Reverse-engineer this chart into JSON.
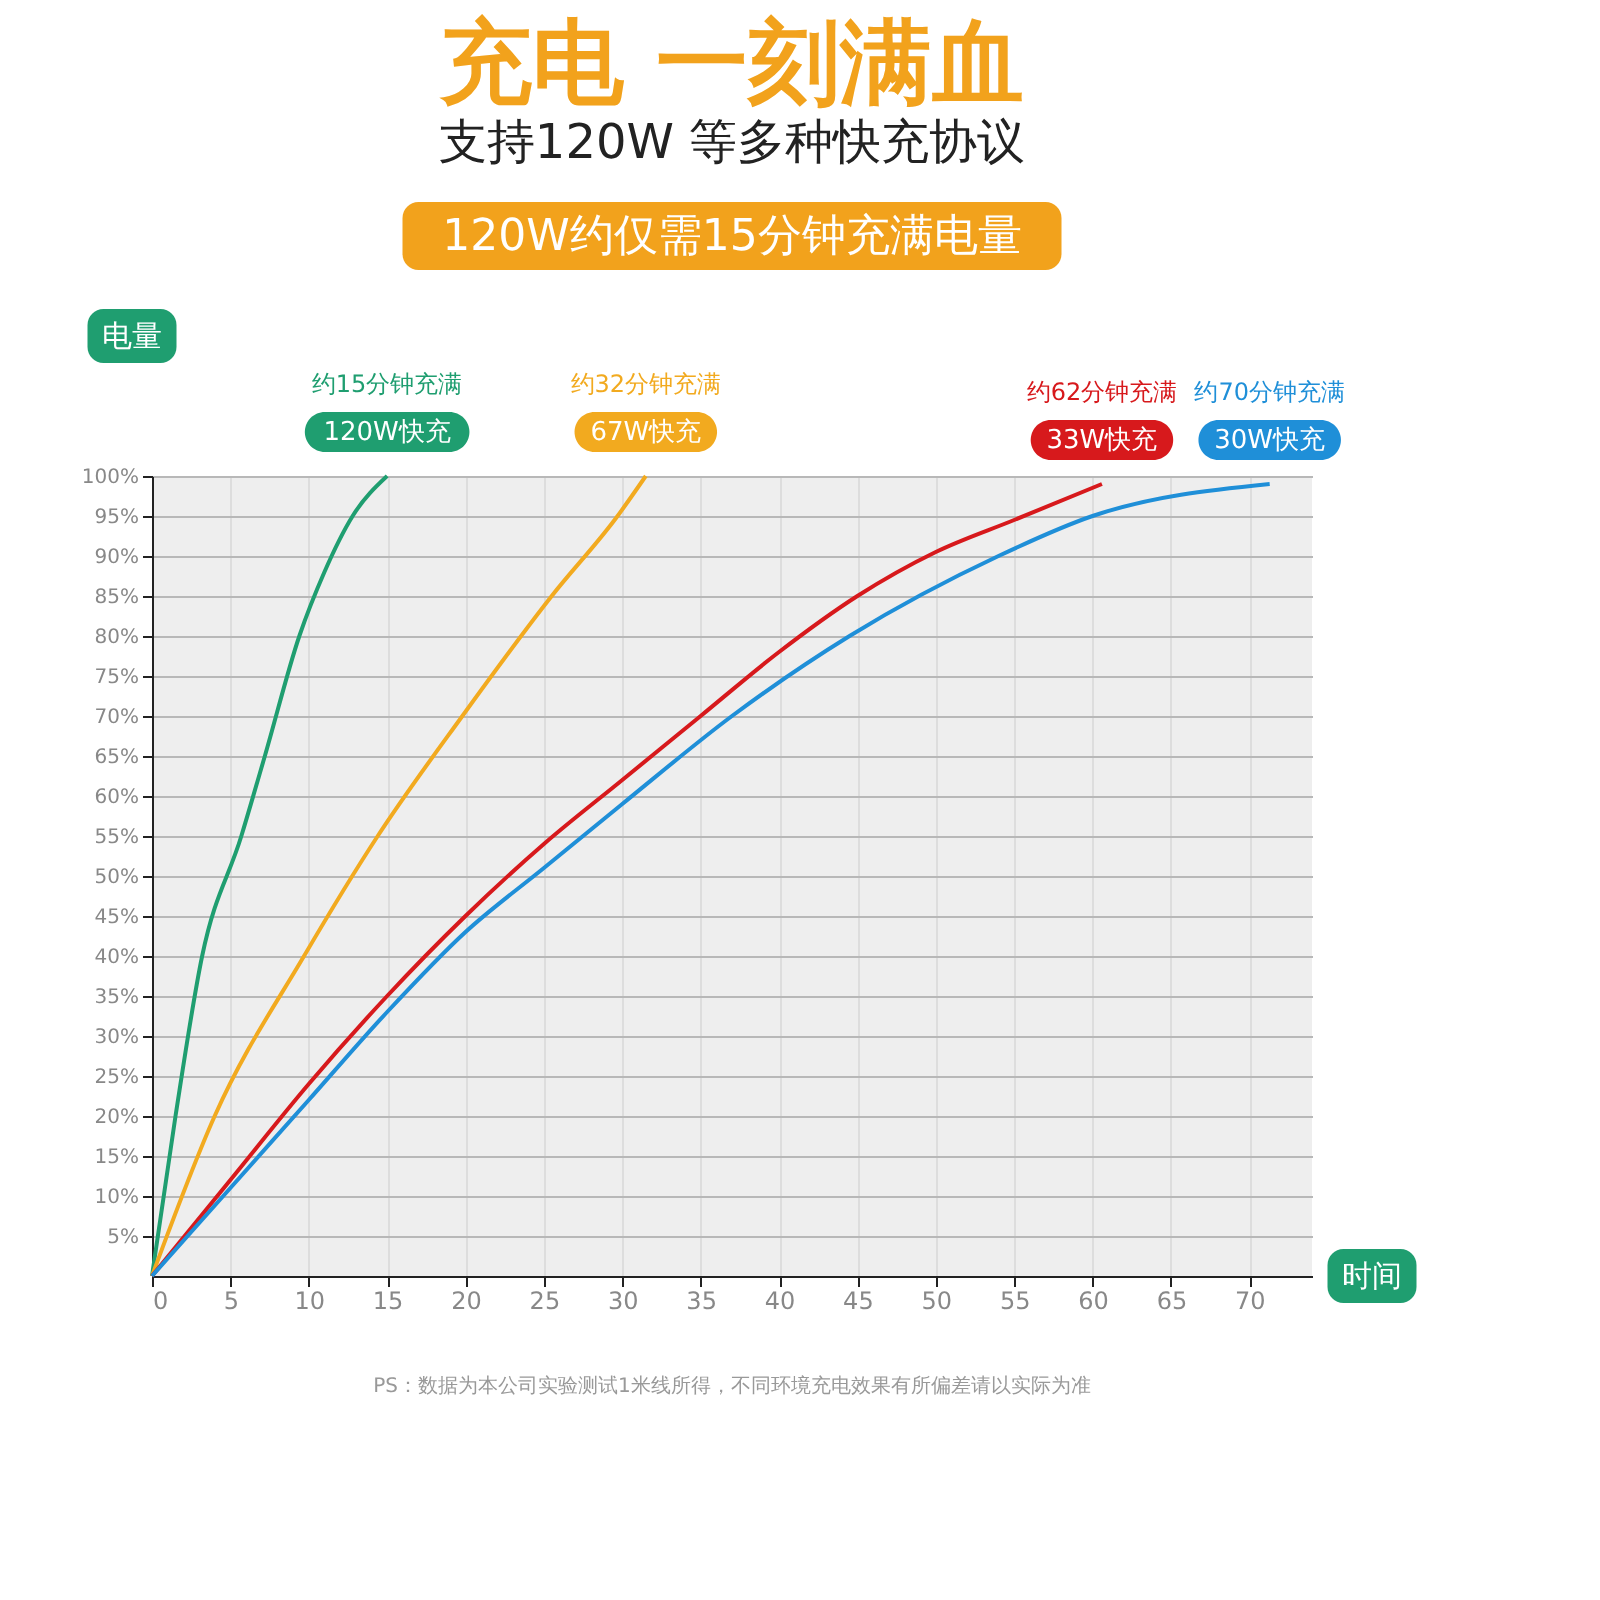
{
  "chart_data": {
    "type": "line",
    "title": "充电 一刻满血",
    "subtitle": "支持120W 等多种快充协议",
    "xlabel": "时间",
    "ylabel": "电量",
    "xlim": [
      0,
      74
    ],
    "ylim": [
      0,
      100
    ],
    "xticks": [
      0,
      5,
      10,
      15,
      20,
      25,
      30,
      35,
      40,
      45,
      50,
      55,
      60,
      65,
      70
    ],
    "yticks": [
      {
        "value": 5,
        "label": "5%"
      },
      {
        "value": 10,
        "label": "10%"
      },
      {
        "value": 15,
        "label": "15%"
      },
      {
        "value": 20,
        "label": "20%"
      },
      {
        "value": 25,
        "label": "25%"
      },
      {
        "value": 30,
        "label": "30%"
      },
      {
        "value": 35,
        "label": "35%"
      },
      {
        "value": 40,
        "label": "40%"
      },
      {
        "value": 45,
        "label": "45%"
      },
      {
        "value": 50,
        "label": "50%"
      },
      {
        "value": 55,
        "label": "55%"
      },
      {
        "value": 60,
        "label": "60%"
      },
      {
        "value": 65,
        "label": "65%"
      },
      {
        "value": 70,
        "label": "70%"
      },
      {
        "value": 75,
        "label": "75%"
      },
      {
        "value": 80,
        "label": "80%"
      },
      {
        "value": 85,
        "label": "85%"
      },
      {
        "value": 90,
        "label": "90%"
      },
      {
        "value": 95,
        "label": "95%"
      },
      {
        "value": 100,
        "label": "100%"
      }
    ],
    "grid": true,
    "line_style": "solid",
    "marker": "none",
    "legend": "top",
    "series": [
      {
        "name": "120W快充",
        "color": "#1f9e70",
        "x": [
          0,
          1.5,
          3.2,
          5.7,
          7.2,
          9.4,
          11,
          12.8,
          15
        ],
        "values": [
          0,
          20,
          40,
          55,
          65,
          80,
          88,
          95,
          100
        ]
      },
      {
        "name": "67W快充",
        "color": "#f2aa1f",
        "x": [
          0,
          4,
          9.7,
          14.4,
          19.8,
          25.5,
          29.7,
          31.5
        ],
        "values": [
          0,
          20,
          40,
          55,
          70,
          85,
          95,
          100
        ]
      },
      {
        "name": "33W快充",
        "color": "#d7191c",
        "x": [
          0,
          5,
          10,
          15,
          20,
          25,
          30,
          35,
          40,
          45,
          50,
          55,
          60.6
        ],
        "values": [
          0,
          12,
          24,
          35,
          45,
          54,
          62,
          70,
          78,
          85,
          90.5,
          94.5,
          99
        ]
      },
      {
        "name": "30W快充",
        "color": "#1f8fd8",
        "x": [
          0,
          5,
          10,
          15,
          20,
          25,
          30,
          37,
          44.5,
          54,
          60,
          71.3
        ],
        "values": [
          0,
          11,
          22,
          33,
          43,
          51,
          59,
          70,
          80,
          90,
          95,
          99
        ]
      }
    ],
    "annotations": [
      "约15分钟充满",
      "约32分钟充满",
      "约62分钟充满",
      "约70分钟充满",
      "120W约仅需15分钟充满电量",
      "PS：数据为本公司实验测试1米线所得，不同环境充电效果有所偏差请以实际为准"
    ]
  }
}
